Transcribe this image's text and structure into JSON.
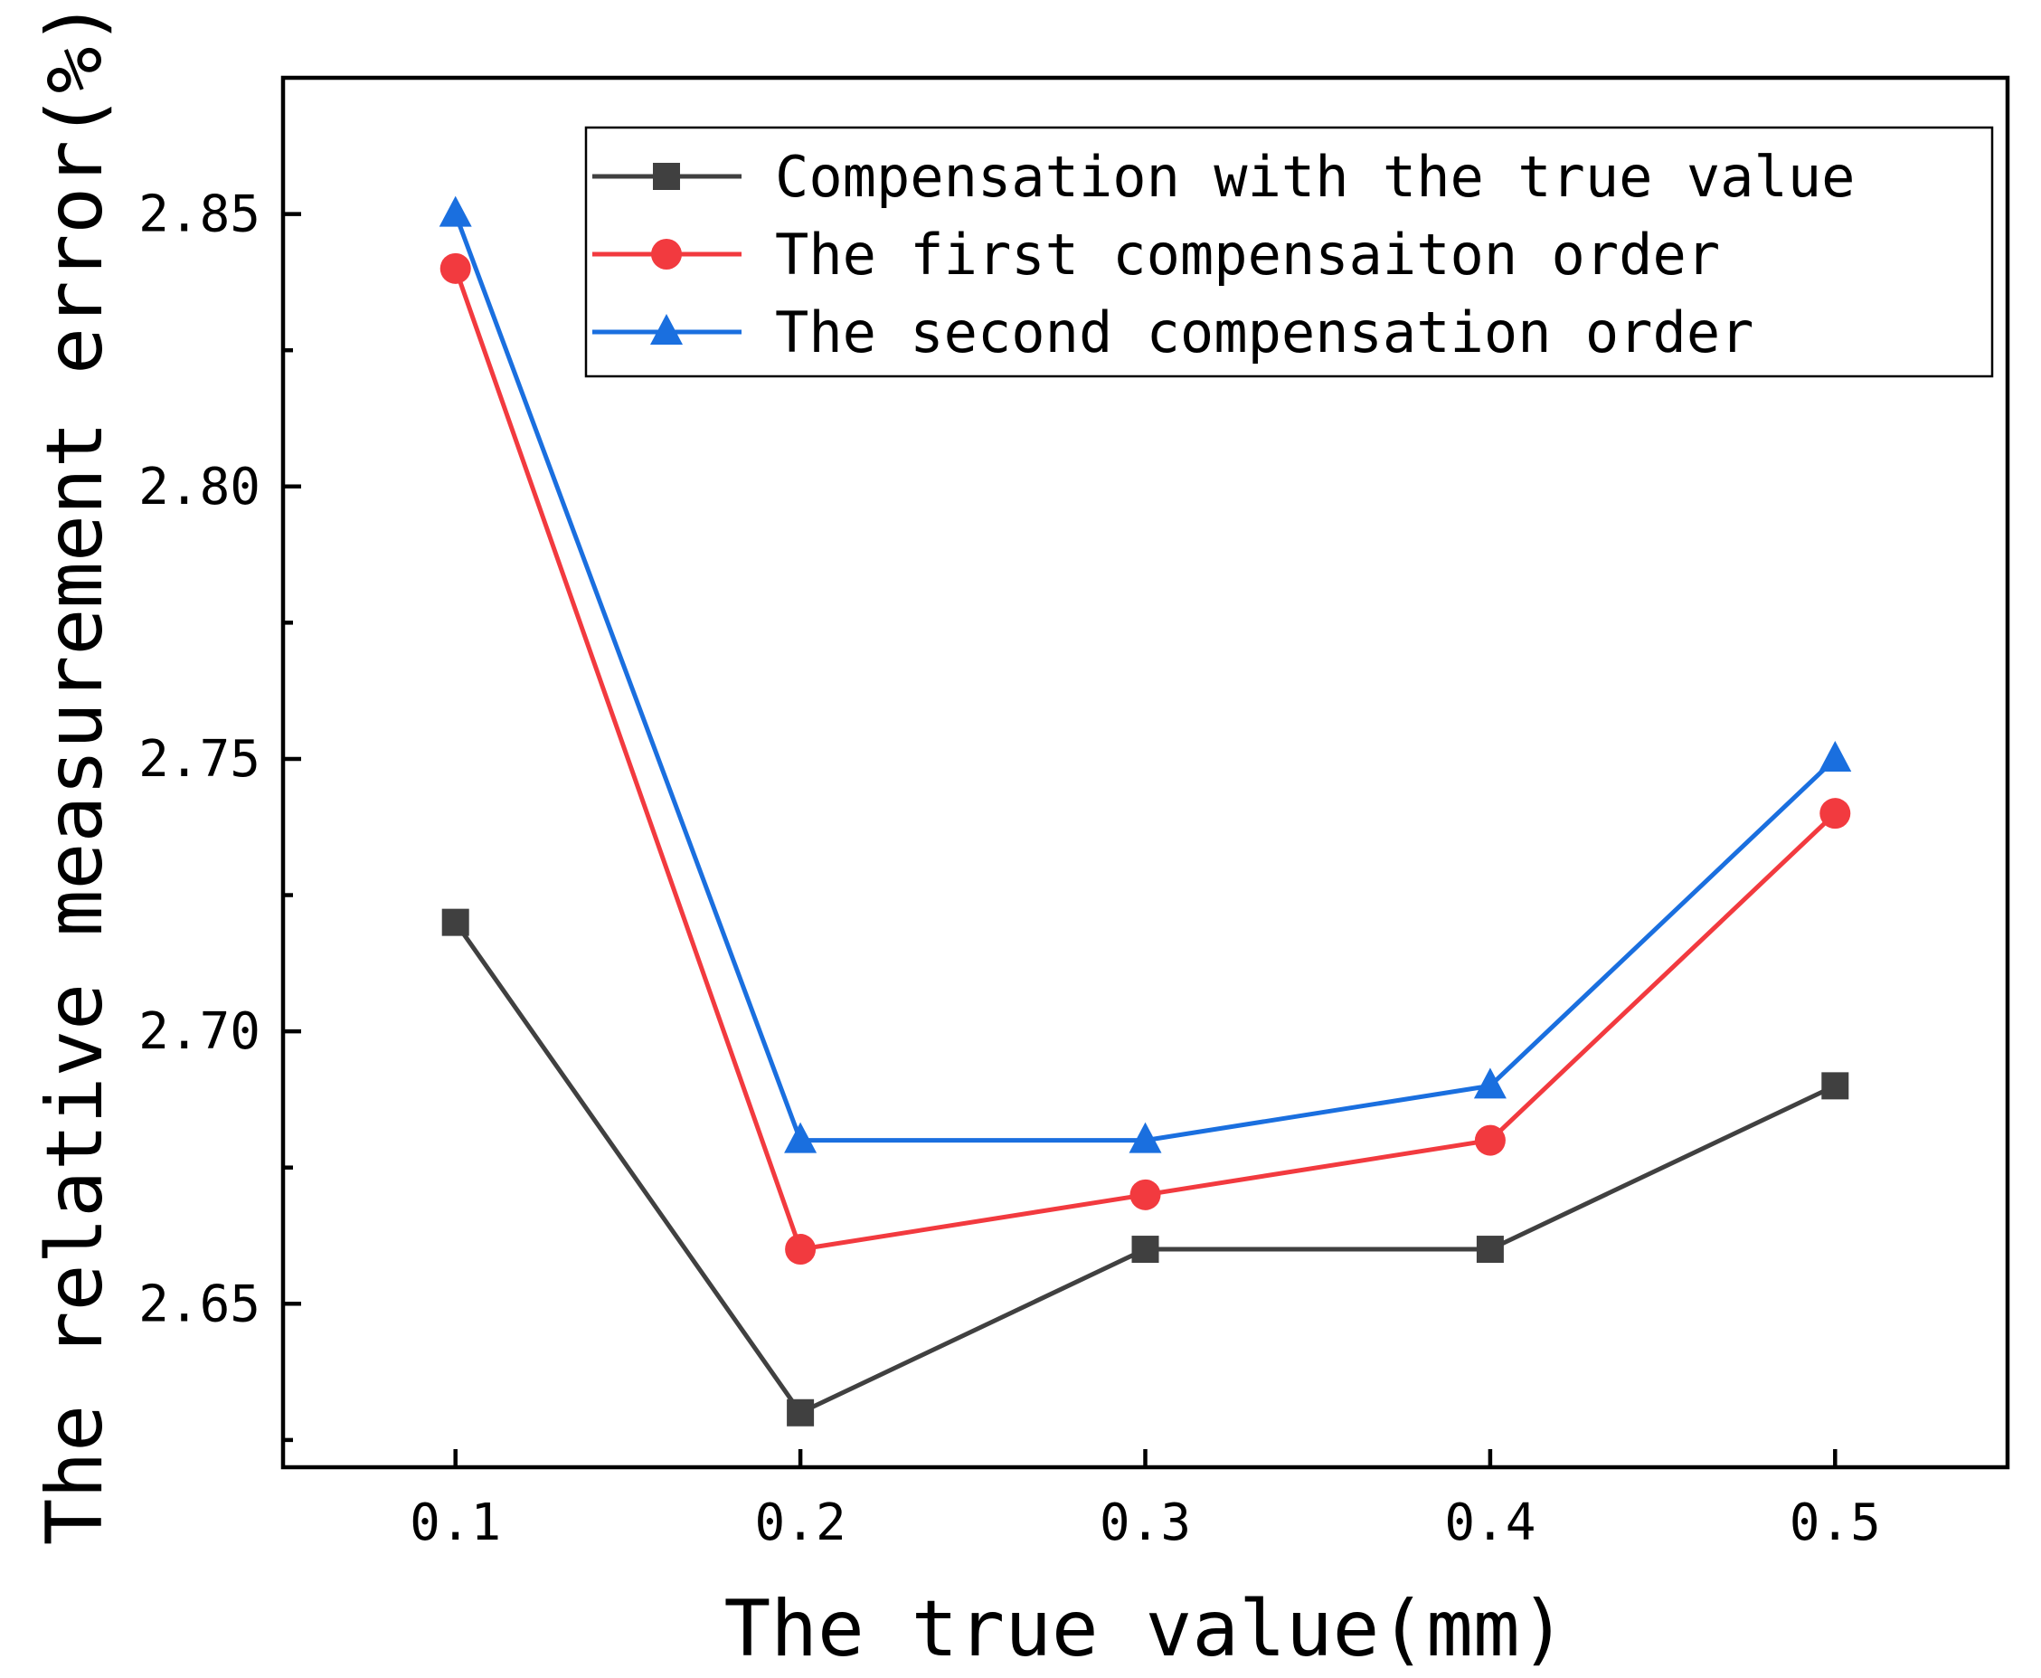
{
  "chart_data": {
    "type": "line",
    "xlabel": "The true value(mm)",
    "ylabel": "The relative measurement error(%)",
    "x": [
      0.1,
      0.2,
      0.3,
      0.4,
      0.5
    ],
    "x_tick_labels": [
      "0.1",
      "0.2",
      "0.3",
      "0.4",
      "0.5"
    ],
    "xlim": [
      0.05,
      0.55
    ],
    "y_tick_values": [
      2.65,
      2.7,
      2.75,
      2.8,
      2.85
    ],
    "y_tick_labels": [
      "2.65",
      "2.70",
      "2.75",
      "2.80",
      "2.85"
    ],
    "ylim": [
      2.62,
      2.875
    ],
    "grid": false,
    "legend_position": "top-right",
    "series": [
      {
        "name": "Compensation with the true value",
        "values": [
          2.72,
          2.63,
          2.66,
          2.66,
          2.69
        ],
        "color": "#404040",
        "marker": "square"
      },
      {
        "name": "The first compensaiton order",
        "values": [
          2.84,
          2.66,
          2.67,
          2.68,
          2.74
        ],
        "color": "#f23a3f",
        "marker": "circle"
      },
      {
        "name": "The second compensation order",
        "values": [
          2.85,
          2.68,
          2.68,
          2.69,
          2.75
        ],
        "color": "#1a6fdf",
        "marker": "triangle"
      }
    ]
  }
}
